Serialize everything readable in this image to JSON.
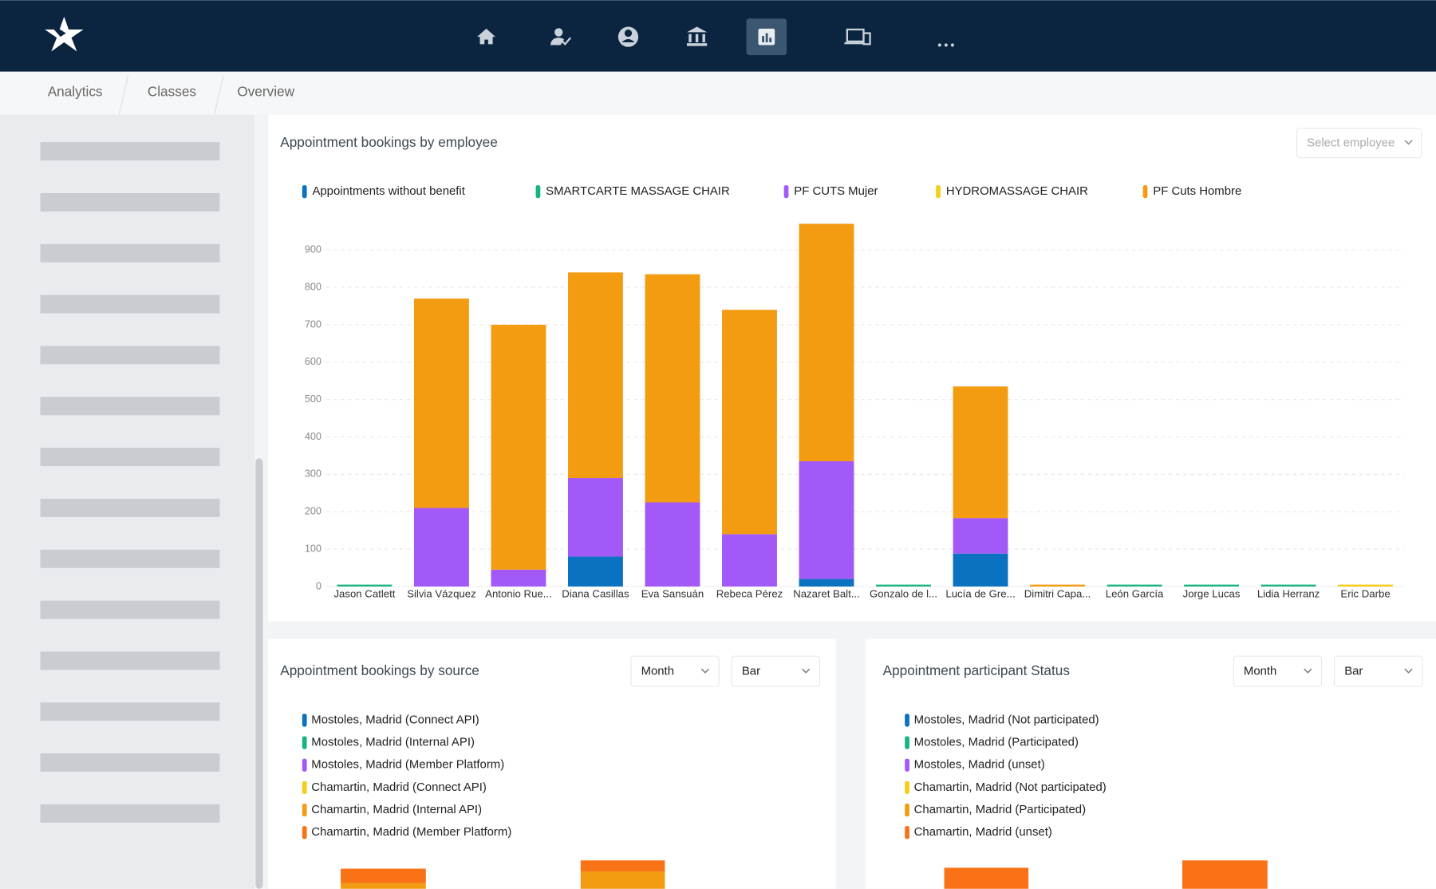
{
  "breadcrumbs": [
    "Analytics",
    "Classes",
    "Overview"
  ],
  "employee_selector": "Select employee",
  "chart_data": {
    "type": "stacked-bar",
    "title": "Appointment bookings by employee",
    "categories": [
      "Jason Catlett",
      "Silvia Vázquez",
      "Antonio Rue...",
      "Diana Casillas",
      "Eva Sansuán",
      "Rebeca Pérez",
      "Nazaret Balt...",
      "Gonzalo de l...",
      "Lucía de Gre...",
      "Dimitri Capa...",
      "León García",
      "Jorge Lucas",
      "Lidia Herranz",
      "Eric Darbe"
    ],
    "series": [
      {
        "name": "Appointments without benefit",
        "color": "#0a72c0",
        "values": [
          0,
          0,
          0,
          80,
          0,
          0,
          20,
          0,
          88,
          0,
          0,
          0,
          0,
          0
        ]
      },
      {
        "name": "SMARTCARTE MASSAGE CHAIR",
        "color": "#16b57f",
        "values": [
          5,
          0,
          0,
          0,
          0,
          0,
          0,
          5,
          0,
          0,
          5,
          5,
          5,
          0
        ]
      },
      {
        "name": "PF CUTS Mujer",
        "color": "#a259f7",
        "values": [
          0,
          210,
          45,
          210,
          225,
          140,
          315,
          0,
          95,
          0,
          0,
          0,
          0,
          0
        ]
      },
      {
        "name": "HYDROMASSAGE CHAIR",
        "color": "#f5cd19",
        "values": [
          0,
          0,
          0,
          0,
          0,
          0,
          0,
          0,
          0,
          0,
          0,
          0,
          0,
          5
        ]
      },
      {
        "name": "PF Cuts Hombre",
        "color": "#f39c12",
        "values": [
          0,
          560,
          655,
          550,
          610,
          600,
          635,
          0,
          352,
          5,
          0,
          0,
          0,
          0
        ]
      }
    ],
    "ylim": [
      0,
      980
    ],
    "yticks": [
      0,
      100,
      200,
      300,
      400,
      500,
      600,
      700,
      800,
      900
    ],
    "grid": true
  },
  "panels": [
    {
      "title": "Appointment bookings by source",
      "controls": [
        "Month",
        "Bar"
      ],
      "legend": [
        {
          "name": "Mostoles, Madrid (Connect API)",
          "color": "#0a72c0"
        },
        {
          "name": "Mostoles, Madrid (Internal API)",
          "color": "#16b57f"
        },
        {
          "name": "Mostoles, Madrid (Member Platform)",
          "color": "#a259f7"
        },
        {
          "name": "Chamartin, Madrid (Connect API)",
          "color": "#f5cd19"
        },
        {
          "name": "Chamartin, Madrid (Internal API)",
          "color": "#f39c12"
        },
        {
          "name": "Chamartin, Madrid (Member Platform)",
          "color": "#f97316"
        }
      ]
    },
    {
      "title": "Appointment participant Status",
      "controls": [
        "Month",
        "Bar"
      ],
      "legend": [
        {
          "name": "Mostoles, Madrid (Not participated)",
          "color": "#0a72c0"
        },
        {
          "name": "Mostoles, Madrid (Participated)",
          "color": "#16b57f"
        },
        {
          "name": "Mostoles, Madrid (unset)",
          "color": "#a259f7"
        },
        {
          "name": "Chamartin, Madrid (Not participated)",
          "color": "#f5cd19"
        },
        {
          "name": "Chamartin, Madrid (Participated)",
          "color": "#f39c12"
        },
        {
          "name": "Chamartin, Madrid (unset)",
          "color": "#f97316"
        }
      ]
    }
  ]
}
